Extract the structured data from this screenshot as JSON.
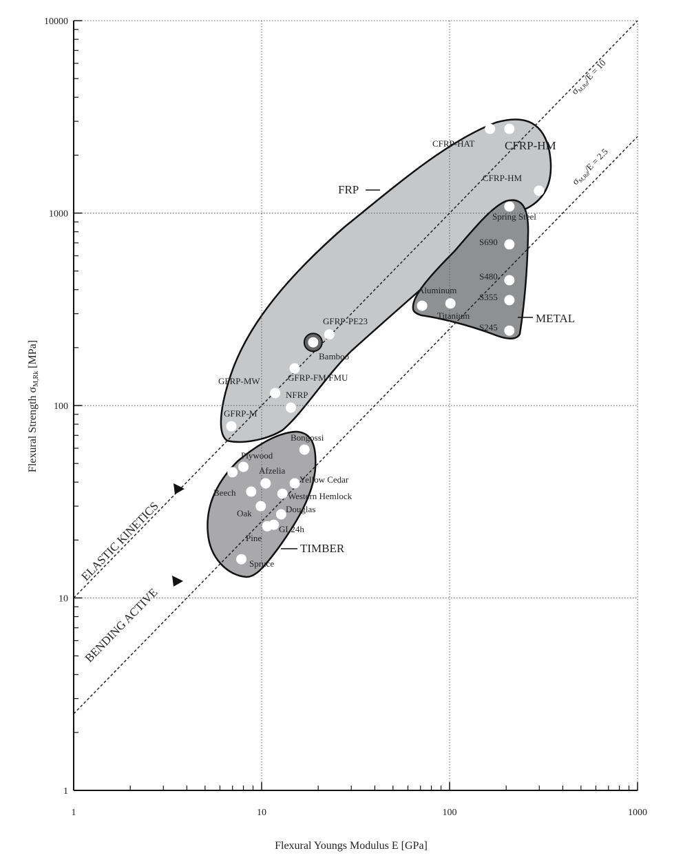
{
  "chart_data": {
    "type": "scatter",
    "x_label": "Flexural Youngs Modulus E [GPa]",
    "y_label": {
      "text": "Flexural Strength σ",
      "subscript": "M,Rk",
      "suffix": " [MPa]"
    },
    "log_x": true,
    "log_y": true,
    "grid": true,
    "xlim": [
      1,
      1000
    ],
    "ylim": [
      1,
      10000
    ],
    "xticks": [
      1,
      10,
      100,
      1000
    ],
    "yticks": [
      1,
      10,
      100,
      1000,
      10000
    ],
    "color": "#ffffff",
    "x": [
      164,
      208,
      299,
      208,
      208,
      208,
      208,
      208,
      71.4,
      101,
      18.8,
      22.9,
      15.0,
      11.8,
      14.3,
      6.9,
      16.9,
      8.0,
      7.0,
      10.5,
      15.0,
      8.8,
      12.9,
      9.9,
      12.7,
      10.7,
      11.6,
      7.8
    ],
    "values": [
      2740,
      2740,
      1307,
      1082,
      688,
      448,
      353,
      245,
      330,
      339,
      213,
      234,
      156,
      116,
      97.5,
      78,
      59,
      48,
      45,
      39.4,
      39.4,
      35.7,
      34.8,
      30,
      27.2,
      23.6,
      24,
      15.9
    ],
    "point_labels": [
      "CFRP-HAT",
      "CFRP-HM",
      "CFRP-HM",
      "Spring Steel",
      "S690",
      "S480",
      "S355",
      "S245",
      "Aluminum",
      "Titanium",
      "Bamboo",
      "GFRP-PE23",
      "GFRP-FM/FMU",
      "GFRP-MW",
      "NFRP",
      "GFRP-M",
      "Bongossi",
      "Plywood",
      null,
      "Afzelia",
      "Yellow Cedar",
      "Beech",
      "Western Hemlock",
      "Oak",
      "Douglas",
      "Pine",
      "GL24h",
      "Spruce"
    ],
    "region_labels": [
      "FRP",
      "METAL",
      "TIMBER"
    ],
    "guide_lines": [
      {
        "symbol": "σ",
        "subscript": "M,Rd",
        "text": "/E = 10",
        "ratio": 10
      },
      {
        "symbol": "σ",
        "subscript": "M,Rd",
        "text": "/E = 2.5",
        "ratio": 2.5
      }
    ],
    "annotations": [
      "ELASTIC KINETICS",
      "BENDING ACTIVE"
    ]
  }
}
